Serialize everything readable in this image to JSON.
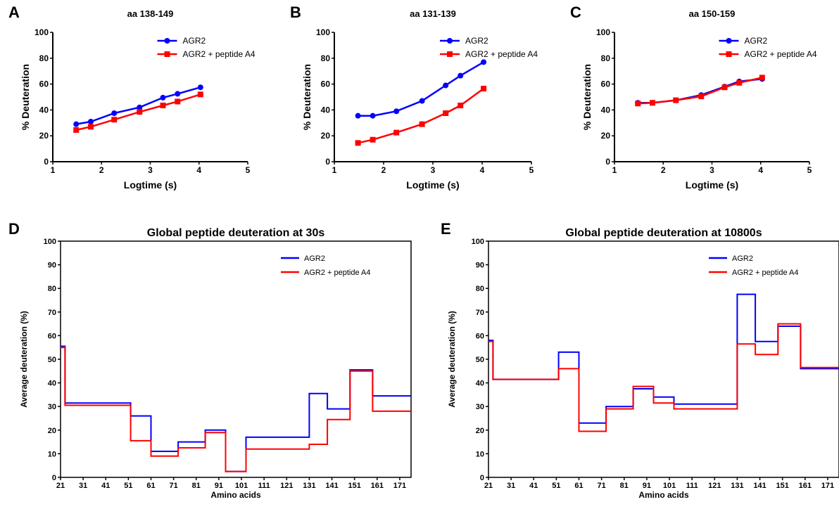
{
  "chart_data": [
    {
      "panel": "A",
      "type": "line",
      "title": "aa 138-149",
      "xlabel": "Logtime (s)",
      "ylabel": "% Deuteration",
      "xlim": [
        1,
        5
      ],
      "ylim": [
        0,
        100
      ],
      "xticks": [
        1,
        2,
        3,
        4,
        5
      ],
      "yticks": [
        0,
        20,
        40,
        60,
        80,
        100
      ],
      "legend_position": "top-right",
      "x": [
        1.48,
        1.78,
        2.26,
        2.78,
        3.26,
        3.56,
        4.03
      ],
      "series": [
        {
          "name": "AGR2",
          "color": "#0000ff",
          "marker": "circle",
          "values": [
            29,
            31,
            37.5,
            42,
            49.5,
            52.5,
            57.5
          ]
        },
        {
          "name": "AGR2 + peptide A4",
          "color": "#ff0000",
          "marker": "square",
          "values": [
            24.5,
            27,
            32.5,
            38.5,
            43.5,
            46.5,
            52
          ]
        }
      ]
    },
    {
      "panel": "B",
      "type": "line",
      "title": "aa 131-139",
      "xlabel": "Logtime (s)",
      "ylabel": "% Deuteration",
      "xlim": [
        1,
        5
      ],
      "ylim": [
        0,
        100
      ],
      "xticks": [
        1,
        2,
        3,
        4,
        5
      ],
      "yticks": [
        0,
        20,
        40,
        60,
        80,
        100
      ],
      "legend_position": "top-right",
      "x": [
        1.48,
        1.78,
        2.26,
        2.78,
        3.26,
        3.56,
        4.03
      ],
      "series": [
        {
          "name": "AGR2",
          "color": "#0000ff",
          "marker": "circle",
          "values": [
            35.5,
            35.5,
            39,
            47,
            59,
            66.5,
            77
          ]
        },
        {
          "name": "AGR2 + peptide A4",
          "color": "#ff0000",
          "marker": "square",
          "values": [
            14.5,
            17,
            22.5,
            29,
            37.5,
            43.5,
            56.5
          ]
        }
      ]
    },
    {
      "panel": "C",
      "type": "line",
      "title": "aa 150-159",
      "xlabel": "Logtime (s)",
      "ylabel": "% Deuteration",
      "xlim": [
        1,
        5
      ],
      "ylim": [
        0,
        100
      ],
      "xticks": [
        1,
        2,
        3,
        4,
        5
      ],
      "yticks": [
        0,
        20,
        40,
        60,
        80,
        100
      ],
      "legend_position": "top-right",
      "x": [
        1.48,
        1.78,
        2.26,
        2.78,
        3.26,
        3.56,
        4.03
      ],
      "series": [
        {
          "name": "AGR2",
          "color": "#0000ff",
          "marker": "circle",
          "values": [
            45.5,
            45.5,
            47.5,
            51.5,
            58,
            62,
            64
          ]
        },
        {
          "name": "AGR2 + peptide A4",
          "color": "#ff0000",
          "marker": "square",
          "values": [
            45,
            45.5,
            47.5,
            50.5,
            57.5,
            61,
            65
          ]
        }
      ]
    },
    {
      "panel": "D",
      "type": "line",
      "step": true,
      "title": "Global peptide deuteration at 30s",
      "xlabel": "Amino acids",
      "ylabel": "Average deuteration (%)",
      "xlim": [
        21,
        176
      ],
      "ylim": [
        0,
        100
      ],
      "xticks": [
        21,
        31,
        41,
        51,
        61,
        71,
        81,
        91,
        101,
        111,
        121,
        131,
        141,
        151,
        161,
        171
      ],
      "yticks": [
        0,
        10,
        20,
        30,
        40,
        50,
        60,
        70,
        80,
        90,
        100
      ],
      "legend_position": "top-right",
      "series": [
        {
          "name": "AGR2",
          "color": "#0000ff",
          "x": [
            21,
            23,
            23,
            52,
            52,
            61,
            61,
            73,
            73,
            85,
            85,
            94,
            94,
            103,
            103,
            131,
            131,
            139,
            139,
            149,
            149,
            159,
            159,
            176
          ],
          "values": [
            55.5,
            55.5,
            31.5,
            31.5,
            26,
            26,
            11,
            11,
            15,
            15,
            20,
            20,
            2.5,
            2.5,
            17,
            17,
            35.5,
            35.5,
            29,
            29,
            45.5,
            45.5,
            34.5,
            34.5
          ]
        },
        {
          "name": "AGR2 + peptide A4",
          "color": "#ff0000",
          "x": [
            21,
            23,
            23,
            52,
            52,
            61,
            61,
            73,
            73,
            85,
            85,
            94,
            94,
            103,
            103,
            131,
            131,
            139,
            139,
            149,
            149,
            159,
            159,
            176
          ],
          "values": [
            55,
            55,
            30.5,
            30.5,
            15.5,
            15.5,
            9,
            9,
            12.5,
            12.5,
            19,
            19,
            2.5,
            2.5,
            12,
            12,
            14,
            14,
            24.5,
            24.5,
            45,
            45,
            28,
            28
          ]
        }
      ]
    },
    {
      "panel": "E",
      "type": "line",
      "step": true,
      "title": "Global peptide deuteration at 10800s",
      "xlabel": "Amino acids",
      "ylabel": "Average deuteration (%)",
      "xlim": [
        21,
        176
      ],
      "ylim": [
        0,
        100
      ],
      "xticks": [
        21,
        31,
        41,
        51,
        61,
        71,
        81,
        91,
        101,
        111,
        121,
        131,
        141,
        151,
        161,
        171
      ],
      "yticks": [
        0,
        10,
        20,
        30,
        40,
        50,
        60,
        70,
        80,
        90,
        100
      ],
      "legend_position": "top-right",
      "series": [
        {
          "name": "AGR2",
          "color": "#0000ff",
          "x": [
            21,
            23,
            23,
            52,
            52,
            61,
            61,
            73,
            73,
            85,
            85,
            94,
            94,
            103,
            103,
            131,
            131,
            139,
            139,
            149,
            149,
            159,
            159,
            176
          ],
          "values": [
            58,
            58,
            41.5,
            41.5,
            53,
            53,
            23,
            23,
            30,
            30,
            37.5,
            37.5,
            34,
            34,
            31,
            31,
            77.5,
            77.5,
            57.5,
            57.5,
            64,
            64,
            46,
            46
          ]
        },
        {
          "name": "AGR2 + peptide A4",
          "color": "#ff0000",
          "x": [
            21,
            23,
            23,
            52,
            52,
            61,
            61,
            73,
            73,
            85,
            85,
            94,
            94,
            103,
            103,
            131,
            131,
            139,
            139,
            149,
            149,
            159,
            159,
            176
          ],
          "values": [
            57.5,
            57.5,
            41.5,
            41.5,
            46,
            46,
            19.5,
            19.5,
            29,
            29,
            38.5,
            38.5,
            31.5,
            31.5,
            29,
            29,
            56.5,
            56.5,
            52,
            52,
            65,
            65,
            46.5,
            46.5
          ]
        }
      ]
    }
  ]
}
